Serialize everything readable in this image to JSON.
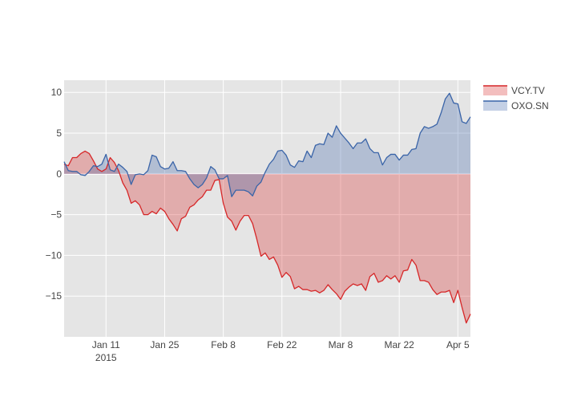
{
  "chart_data": {
    "type": "area",
    "title": "",
    "xlabel": "",
    "ylabel": "",
    "x_range": [
      "2015-01-01",
      "2015-04-08"
    ],
    "ylim": [
      -20,
      11.5
    ],
    "grid": true,
    "legend_position": "top-right",
    "x_ticks": [
      {
        "date": "2015-01-11",
        "label": "Jan 11",
        "sublabel": "2015"
      },
      {
        "date": "2015-01-25",
        "label": "Jan 25",
        "sublabel": ""
      },
      {
        "date": "2015-02-08",
        "label": "Feb 8",
        "sublabel": ""
      },
      {
        "date": "2015-02-22",
        "label": "Feb 22",
        "sublabel": ""
      },
      {
        "date": "2015-03-08",
        "label": "Mar 8",
        "sublabel": ""
      },
      {
        "date": "2015-03-22",
        "label": "Mar 22",
        "sublabel": ""
      },
      {
        "date": "2015-04-05",
        "label": "Apr 5",
        "sublabel": ""
      }
    ],
    "y_ticks": [
      {
        "value": 10,
        "label": "10"
      },
      {
        "value": 5,
        "label": "5"
      },
      {
        "value": 0,
        "label": "0"
      },
      {
        "value": -5,
        "label": "−5"
      },
      {
        "value": -10,
        "label": "−10"
      },
      {
        "value": -15,
        "label": "−15"
      }
    ],
    "series": [
      {
        "name": "VCY.TV",
        "color": "#d62728",
        "fill": "rgba(214,39,40,0.3)",
        "points": [
          [
            "2015-01-01",
            1.2
          ],
          [
            "2015-01-02",
            1.0
          ],
          [
            "2015-01-03",
            2.0
          ],
          [
            "2015-01-04",
            2.0
          ],
          [
            "2015-01-05",
            2.5
          ],
          [
            "2015-01-06",
            2.8
          ],
          [
            "2015-01-07",
            2.5
          ],
          [
            "2015-01-08",
            1.6
          ],
          [
            "2015-01-09",
            0.6
          ],
          [
            "2015-01-10",
            0.3
          ],
          [
            "2015-01-11",
            0.6
          ],
          [
            "2015-01-12",
            2.0
          ],
          [
            "2015-01-13",
            1.4
          ],
          [
            "2015-01-14",
            0.4
          ],
          [
            "2015-01-15",
            -1.1
          ],
          [
            "2015-01-16",
            -2.0
          ],
          [
            "2015-01-17",
            -3.6
          ],
          [
            "2015-01-18",
            -3.3
          ],
          [
            "2015-01-19",
            -3.8
          ],
          [
            "2015-01-20",
            -5.0
          ],
          [
            "2015-01-21",
            -5.0
          ],
          [
            "2015-01-22",
            -4.6
          ],
          [
            "2015-01-23",
            -4.9
          ],
          [
            "2015-01-24",
            -4.2
          ],
          [
            "2015-01-25",
            -4.6
          ],
          [
            "2015-01-26",
            -5.5
          ],
          [
            "2015-01-27",
            -6.2
          ],
          [
            "2015-01-28",
            -7.0
          ],
          [
            "2015-01-29",
            -5.5
          ],
          [
            "2015-01-30",
            -5.2
          ],
          [
            "2015-01-31",
            -4.1
          ],
          [
            "2015-02-01",
            -3.8
          ],
          [
            "2015-02-02",
            -3.2
          ],
          [
            "2015-02-03",
            -2.8
          ],
          [
            "2015-02-04",
            -2.0
          ],
          [
            "2015-02-05",
            -2.0
          ],
          [
            "2015-02-06",
            -0.8
          ],
          [
            "2015-02-07",
            -0.7
          ],
          [
            "2015-02-08",
            -3.6
          ],
          [
            "2015-02-09",
            -5.3
          ],
          [
            "2015-02-10",
            -5.8
          ],
          [
            "2015-02-11",
            -6.9
          ],
          [
            "2015-02-12",
            -5.8
          ],
          [
            "2015-02-13",
            -5.1
          ],
          [
            "2015-02-14",
            -5.1
          ],
          [
            "2015-02-15",
            -6.1
          ],
          [
            "2015-02-16",
            -8.0
          ],
          [
            "2015-02-17",
            -10.1
          ],
          [
            "2015-02-18",
            -9.7
          ],
          [
            "2015-02-19",
            -10.5
          ],
          [
            "2015-02-20",
            -10.2
          ],
          [
            "2015-02-21",
            -11.2
          ],
          [
            "2015-02-22",
            -12.7
          ],
          [
            "2015-02-23",
            -12.1
          ],
          [
            "2015-02-24",
            -12.6
          ],
          [
            "2015-02-25",
            -14.1
          ],
          [
            "2015-02-26",
            -13.8
          ],
          [
            "2015-02-27",
            -14.2
          ],
          [
            "2015-02-28",
            -14.2
          ],
          [
            "2015-03-01",
            -14.4
          ],
          [
            "2015-03-02",
            -14.3
          ],
          [
            "2015-03-03",
            -14.6
          ],
          [
            "2015-03-04",
            -14.3
          ],
          [
            "2015-03-05",
            -13.6
          ],
          [
            "2015-03-06",
            -14.2
          ],
          [
            "2015-03-07",
            -14.7
          ],
          [
            "2015-03-08",
            -15.4
          ],
          [
            "2015-03-09",
            -14.4
          ],
          [
            "2015-03-10",
            -13.9
          ],
          [
            "2015-03-11",
            -13.5
          ],
          [
            "2015-03-12",
            -13.7
          ],
          [
            "2015-03-13",
            -13.5
          ],
          [
            "2015-03-14",
            -14.3
          ],
          [
            "2015-03-15",
            -12.6
          ],
          [
            "2015-03-16",
            -12.2
          ],
          [
            "2015-03-17",
            -13.3
          ],
          [
            "2015-03-18",
            -13.1
          ],
          [
            "2015-03-19",
            -12.5
          ],
          [
            "2015-03-20",
            -12.9
          ],
          [
            "2015-03-21",
            -12.5
          ],
          [
            "2015-03-22",
            -13.3
          ],
          [
            "2015-03-23",
            -11.9
          ],
          [
            "2015-03-24",
            -11.8
          ],
          [
            "2015-03-25",
            -10.5
          ],
          [
            "2015-03-26",
            -11.2
          ],
          [
            "2015-03-27",
            -13.1
          ],
          [
            "2015-03-28",
            -13.1
          ],
          [
            "2015-03-29",
            -13.3
          ],
          [
            "2015-03-30",
            -14.2
          ],
          [
            "2015-03-31",
            -14.8
          ],
          [
            "2015-04-01",
            -14.5
          ],
          [
            "2015-04-02",
            -14.5
          ],
          [
            "2015-04-03",
            -14.3
          ],
          [
            "2015-04-04",
            -15.8
          ],
          [
            "2015-04-05",
            -14.3
          ],
          [
            "2015-04-06",
            -16.4
          ],
          [
            "2015-04-07",
            -18.3
          ],
          [
            "2015-04-08",
            -17.2
          ]
        ]
      },
      {
        "name": "OXO.SN",
        "color": "#3a64a8",
        "fill": "rgba(58,100,168,0.3)",
        "points": [
          [
            "2015-01-01",
            1.5
          ],
          [
            "2015-01-02",
            0.4
          ],
          [
            "2015-01-03",
            0.3
          ],
          [
            "2015-01-04",
            0.3
          ],
          [
            "2015-01-05",
            -0.1
          ],
          [
            "2015-01-06",
            -0.2
          ],
          [
            "2015-01-07",
            0.3
          ],
          [
            "2015-01-08",
            1.0
          ],
          [
            "2015-01-09",
            0.9
          ],
          [
            "2015-01-10",
            1.2
          ],
          [
            "2015-01-11",
            2.4
          ],
          [
            "2015-01-12",
            0.5
          ],
          [
            "2015-01-13",
            0.3
          ],
          [
            "2015-01-14",
            1.2
          ],
          [
            "2015-01-15",
            0.8
          ],
          [
            "2015-01-16",
            0.3
          ],
          [
            "2015-01-17",
            -1.3
          ],
          [
            "2015-01-18",
            -0.1
          ],
          [
            "2015-01-19",
            0.0
          ],
          [
            "2015-01-20",
            -0.1
          ],
          [
            "2015-01-21",
            0.4
          ],
          [
            "2015-01-22",
            2.3
          ],
          [
            "2015-01-23",
            2.1
          ],
          [
            "2015-01-24",
            0.9
          ],
          [
            "2015-01-25",
            0.6
          ],
          [
            "2015-01-26",
            0.7
          ],
          [
            "2015-01-27",
            1.5
          ],
          [
            "2015-01-28",
            0.4
          ],
          [
            "2015-01-29",
            0.4
          ],
          [
            "2015-01-30",
            0.3
          ],
          [
            "2015-01-31",
            -0.6
          ],
          [
            "2015-02-01",
            -1.3
          ],
          [
            "2015-02-02",
            -1.7
          ],
          [
            "2015-02-03",
            -1.3
          ],
          [
            "2015-02-04",
            -0.5
          ],
          [
            "2015-02-05",
            0.9
          ],
          [
            "2015-02-06",
            0.5
          ],
          [
            "2015-02-07",
            -0.6
          ],
          [
            "2015-02-08",
            -0.6
          ],
          [
            "2015-02-09",
            -0.2
          ],
          [
            "2015-02-10",
            -2.8
          ],
          [
            "2015-02-11",
            -2.0
          ],
          [
            "2015-02-12",
            -2.0
          ],
          [
            "2015-02-13",
            -2.0
          ],
          [
            "2015-02-14",
            -2.2
          ],
          [
            "2015-02-15",
            -2.7
          ],
          [
            "2015-02-16",
            -1.5
          ],
          [
            "2015-02-17",
            -1.0
          ],
          [
            "2015-02-18",
            0.2
          ],
          [
            "2015-02-19",
            1.2
          ],
          [
            "2015-02-20",
            1.8
          ],
          [
            "2015-02-21",
            2.8
          ],
          [
            "2015-02-22",
            2.9
          ],
          [
            "2015-02-23",
            2.3
          ],
          [
            "2015-02-24",
            1.1
          ],
          [
            "2015-02-25",
            0.8
          ],
          [
            "2015-02-26",
            1.6
          ],
          [
            "2015-02-27",
            1.5
          ],
          [
            "2015-02-28",
            2.8
          ],
          [
            "2015-03-01",
            2.0
          ],
          [
            "2015-03-02",
            3.5
          ],
          [
            "2015-03-03",
            3.7
          ],
          [
            "2015-03-04",
            3.6
          ],
          [
            "2015-03-05",
            5.0
          ],
          [
            "2015-03-06",
            4.5
          ],
          [
            "2015-03-07",
            5.9
          ],
          [
            "2015-03-08",
            5.0
          ],
          [
            "2015-03-09",
            4.4
          ],
          [
            "2015-03-10",
            3.8
          ],
          [
            "2015-03-11",
            3.1
          ],
          [
            "2015-03-12",
            3.8
          ],
          [
            "2015-03-13",
            3.8
          ],
          [
            "2015-03-14",
            4.3
          ],
          [
            "2015-03-15",
            3.1
          ],
          [
            "2015-03-16",
            2.6
          ],
          [
            "2015-03-17",
            2.6
          ],
          [
            "2015-03-18",
            1.1
          ],
          [
            "2015-03-19",
            2.0
          ],
          [
            "2015-03-20",
            2.4
          ],
          [
            "2015-03-21",
            2.4
          ],
          [
            "2015-03-22",
            1.7
          ],
          [
            "2015-03-23",
            2.3
          ],
          [
            "2015-03-24",
            2.3
          ],
          [
            "2015-03-25",
            3.0
          ],
          [
            "2015-03-26",
            3.1
          ],
          [
            "2015-03-27",
            5.0
          ],
          [
            "2015-03-28",
            5.8
          ],
          [
            "2015-03-29",
            5.6
          ],
          [
            "2015-03-30",
            5.8
          ],
          [
            "2015-03-31",
            6.1
          ],
          [
            "2015-04-01",
            7.5
          ],
          [
            "2015-04-02",
            9.2
          ],
          [
            "2015-04-03",
            9.9
          ],
          [
            "2015-04-04",
            8.7
          ],
          [
            "2015-04-05",
            8.6
          ],
          [
            "2015-04-06",
            6.4
          ],
          [
            "2015-04-07",
            6.2
          ],
          [
            "2015-04-08",
            7.0
          ]
        ]
      }
    ]
  }
}
